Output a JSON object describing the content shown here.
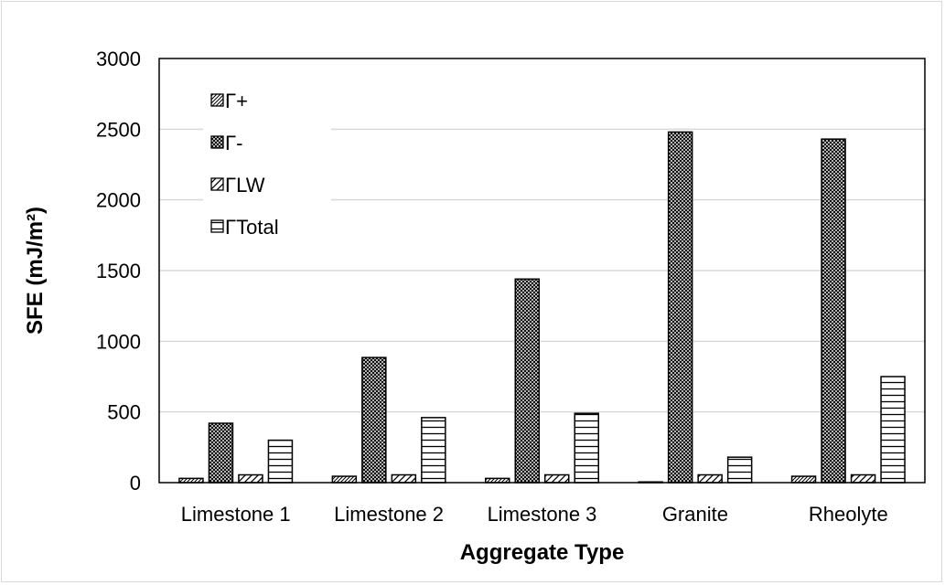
{
  "chart_data": {
    "type": "bar",
    "title": "",
    "xlabel": "Aggregate Type",
    "ylabel": "SFE (mJ/m²)",
    "ylim": [
      0,
      3000
    ],
    "yticks": [
      "0",
      "500",
      "1000",
      "1500",
      "2000",
      "2500",
      "3000"
    ],
    "grid": "horizontal",
    "legend_position": "top-left",
    "categories": [
      "Limestone 1",
      "Limestone 2",
      "Limestone 3",
      "Granite",
      "Rheolyte"
    ],
    "series": [
      {
        "name": "Γ+",
        "pattern": "diagonal-fine",
        "values": [
          30,
          45,
          30,
          5,
          45
        ]
      },
      {
        "name": "Γ-",
        "pattern": "crosshatch-dense",
        "values": [
          420,
          885,
          1440,
          2480,
          2430
        ]
      },
      {
        "name": "ΓLW",
        "pattern": "diagonal-wide",
        "values": [
          55,
          55,
          55,
          55,
          55
        ]
      },
      {
        "name": "ΓTotal",
        "pattern": "horizontal-lines",
        "values": [
          300,
          460,
          490,
          180,
          750
        ]
      }
    ]
  }
}
